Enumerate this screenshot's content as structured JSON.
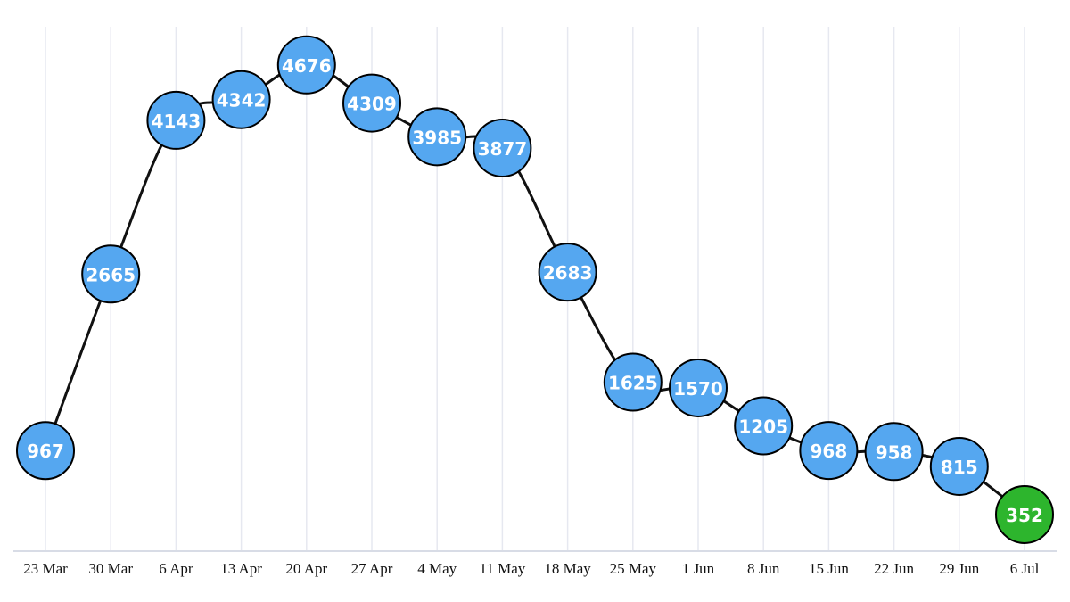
{
  "chart_data": {
    "type": "line",
    "categories": [
      "23 Mar",
      "30 Mar",
      "6 Apr",
      "13 Apr",
      "20 Apr",
      "27 Apr",
      "4 May",
      "11 May",
      "18 May",
      "25 May",
      "1 Jun",
      "8 Jun",
      "15 Jun",
      "22 Jun",
      "29 Jun",
      "6 Jul"
    ],
    "series": [
      {
        "values": [
          967,
          2665,
          4143,
          4342,
          4676,
          4309,
          3985,
          3877,
          2683,
          1625,
          1570,
          1205,
          968,
          958,
          815,
          352
        ]
      }
    ],
    "title": "",
    "xlabel": "",
    "ylabel": "",
    "ylim": [
      0,
      5000
    ],
    "grid": "vertical gridlines",
    "legend": "none",
    "colors": {
      "marker": "#55a7f0",
      "latest_marker": "#2db52d",
      "line": "#111111",
      "label": "#ffffff",
      "grid": "#e6e8f0"
    }
  }
}
